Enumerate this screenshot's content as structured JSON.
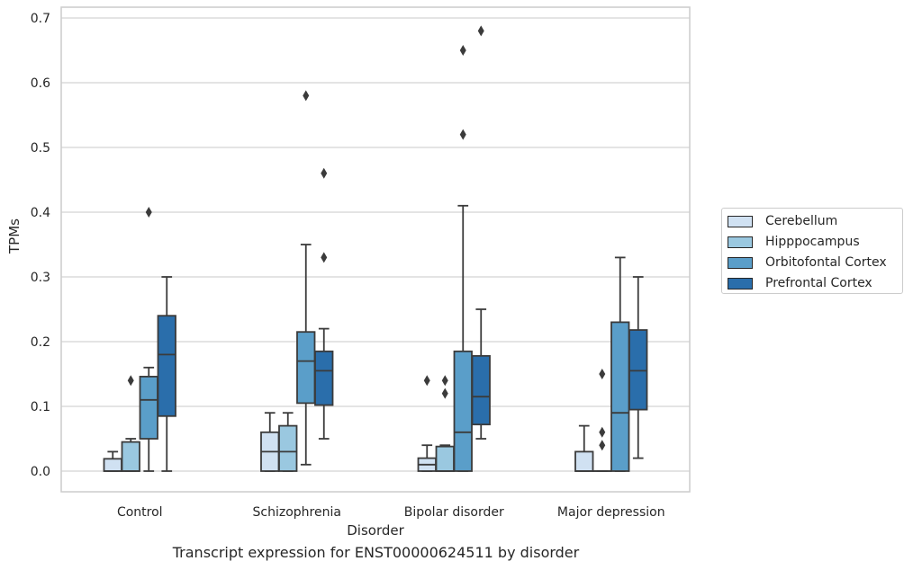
{
  "chart_data": {
    "type": "boxplot",
    "caption": "Transcript expression for ENST00000624511 by disorder",
    "xlabel": "Disorder",
    "ylabel": "TPMs",
    "ylim": [
      -0.033,
      0.715
    ],
    "yticks": [
      0.0,
      0.1,
      0.2,
      0.3,
      0.4,
      0.5,
      0.6,
      0.7
    ],
    "ytick_labels": [
      "0.0",
      "0.1",
      "0.2",
      "0.3",
      "0.4",
      "0.5",
      "0.6",
      "0.7"
    ],
    "grid": "horizontal",
    "legend_position": "right",
    "categories": [
      "Control",
      "Schizophrenia",
      "Bipolar disorder",
      "Major depression"
    ],
    "series": [
      {
        "name": "Cerebellum",
        "color": "#d0e1f2",
        "boxes": [
          {
            "whislo": 0.0,
            "q1": 0.0,
            "med": 0.0,
            "q3": 0.019,
            "whishi": 0.03,
            "fliers": []
          },
          {
            "whislo": 0.0,
            "q1": 0.0,
            "med": 0.03,
            "q3": 0.06,
            "whishi": 0.09,
            "fliers": []
          },
          {
            "whislo": 0.0,
            "q1": 0.0,
            "med": 0.01,
            "q3": 0.02,
            "whishi": 0.04,
            "fliers": [
              0.14
            ]
          },
          {
            "whislo": 0.0,
            "q1": 0.0,
            "med": 0.0,
            "q3": 0.03,
            "whishi": 0.07,
            "fliers": []
          }
        ]
      },
      {
        "name": "Hipppocampus",
        "color": "#9ac8e0",
        "boxes": [
          {
            "whislo": 0.0,
            "q1": 0.0,
            "med": 0.0,
            "q3": 0.045,
            "whishi": 0.05,
            "fliers": [
              0.14
            ]
          },
          {
            "whislo": 0.0,
            "q1": 0.0,
            "med": 0.03,
            "q3": 0.07,
            "whishi": 0.09,
            "fliers": []
          },
          {
            "whislo": 0.0,
            "q1": 0.0,
            "med": 0.0,
            "q3": 0.038,
            "whishi": 0.04,
            "fliers": [
              0.12,
              0.14
            ]
          },
          {
            "whislo": 0.0,
            "q1": 0.0,
            "med": 0.0,
            "q3": 0.0,
            "whishi": 0.0,
            "fliers": [
              0.04,
              0.06,
              0.15
            ]
          }
        ]
      },
      {
        "name": "Orbitofontal Cortex",
        "color": "#5a9ec9",
        "boxes": [
          {
            "whislo": 0.0,
            "q1": 0.05,
            "med": 0.11,
            "q3": 0.146,
            "whishi": 0.16,
            "fliers": [
              0.4
            ]
          },
          {
            "whislo": 0.01,
            "q1": 0.105,
            "med": 0.17,
            "q3": 0.215,
            "whishi": 0.35,
            "fliers": [
              0.58
            ]
          },
          {
            "whislo": 0.0,
            "q1": 0.0,
            "med": 0.06,
            "q3": 0.185,
            "whishi": 0.41,
            "fliers": [
              0.52,
              0.65
            ]
          },
          {
            "whislo": 0.0,
            "q1": 0.0,
            "med": 0.09,
            "q3": 0.23,
            "whishi": 0.33,
            "fliers": []
          }
        ]
      },
      {
        "name": "Prefrontal Cortex",
        "color": "#2a6eab",
        "boxes": [
          {
            "whislo": 0.0,
            "q1": 0.085,
            "med": 0.18,
            "q3": 0.24,
            "whishi": 0.3,
            "fliers": []
          },
          {
            "whislo": 0.05,
            "q1": 0.102,
            "med": 0.155,
            "q3": 0.185,
            "whishi": 0.22,
            "fliers": [
              0.33,
              0.46
            ]
          },
          {
            "whislo": 0.05,
            "q1": 0.072,
            "med": 0.115,
            "q3": 0.178,
            "whishi": 0.25,
            "fliers": [
              0.68
            ]
          },
          {
            "whislo": 0.02,
            "q1": 0.095,
            "med": 0.155,
            "q3": 0.218,
            "whishi": 0.3,
            "fliers": []
          }
        ]
      }
    ]
  }
}
